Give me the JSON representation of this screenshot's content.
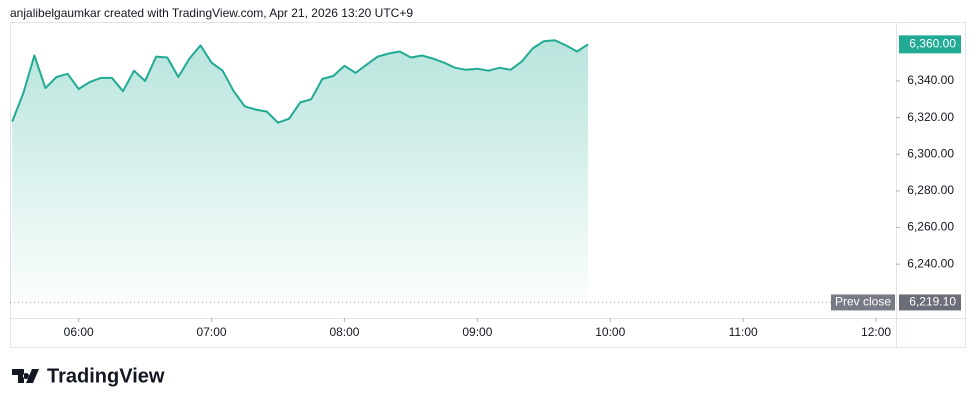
{
  "header": "anjalibelgaumkar created with TradingView.com, Apr 21, 2026 13:20 UTC+9",
  "logo": "TradingView",
  "chart_data": {
    "type": "area",
    "x": [
      "05:30",
      "05:35",
      "05:40",
      "05:45",
      "05:50",
      "05:55",
      "06:00",
      "06:05",
      "06:10",
      "06:15",
      "06:20",
      "06:25",
      "06:30",
      "06:35",
      "06:40",
      "06:45",
      "06:50",
      "06:55",
      "07:00",
      "07:05",
      "07:10",
      "07:15",
      "07:20",
      "07:25",
      "07:30",
      "07:35",
      "07:40",
      "07:45",
      "07:50",
      "07:55",
      "08:00",
      "08:05",
      "08:10",
      "08:15",
      "08:20",
      "08:25",
      "08:30",
      "08:35",
      "08:40",
      "08:45",
      "08:50",
      "08:55",
      "09:00",
      "09:05",
      "09:10",
      "09:15",
      "09:20",
      "09:25",
      "09:30",
      "09:35",
      "09:40",
      "09:45",
      "09:50"
    ],
    "values": [
      6317.8,
      6333.3,
      6353.9,
      6336.1,
      6342.2,
      6343.9,
      6335.6,
      6339.4,
      6341.7,
      6341.7,
      6334.4,
      6345.6,
      6340,
      6353.3,
      6352.8,
      6342.2,
      6352.2,
      6359.4,
      6350,
      6345.6,
      6334.4,
      6326.1,
      6324.4,
      6323.3,
      6317.2,
      6319.4,
      6328.3,
      6330,
      6341.1,
      6342.8,
      6348.3,
      6344.4,
      6348.9,
      6353.3,
      6355,
      6356.1,
      6352.8,
      6353.9,
      6352.2,
      6350,
      6347.2,
      6346.1,
      6346.7,
      6345.6,
      6347.2,
      6346.1,
      6350.6,
      6357.8,
      6361.7,
      6362.2,
      6359.4,
      6356.1,
      6360
    ],
    "color": "#22ab94",
    "xlim": [
      "05:29",
      "12:09"
    ],
    "xticks": [
      "06:00",
      "07:00",
      "08:00",
      "09:00",
      "10:00",
      "11:00",
      "12:00"
    ],
    "ylim": [
      6210.6,
      6372.2
    ],
    "yticks": [
      {
        "value": 6240,
        "label": "6,240.00"
      },
      {
        "value": 6260,
        "label": "6,260.00"
      },
      {
        "value": 6280,
        "label": "6,280.00"
      },
      {
        "value": 6300,
        "label": "6,300.00"
      },
      {
        "value": 6320,
        "label": "6,320.00"
      },
      {
        "value": 6340,
        "label": "6,340.00"
      }
    ],
    "last_price": {
      "value": 6360,
      "label": "6,360.00"
    },
    "prev_close": {
      "title": "Prev close",
      "value": 6219.1,
      "label": "6,219.10"
    }
  }
}
